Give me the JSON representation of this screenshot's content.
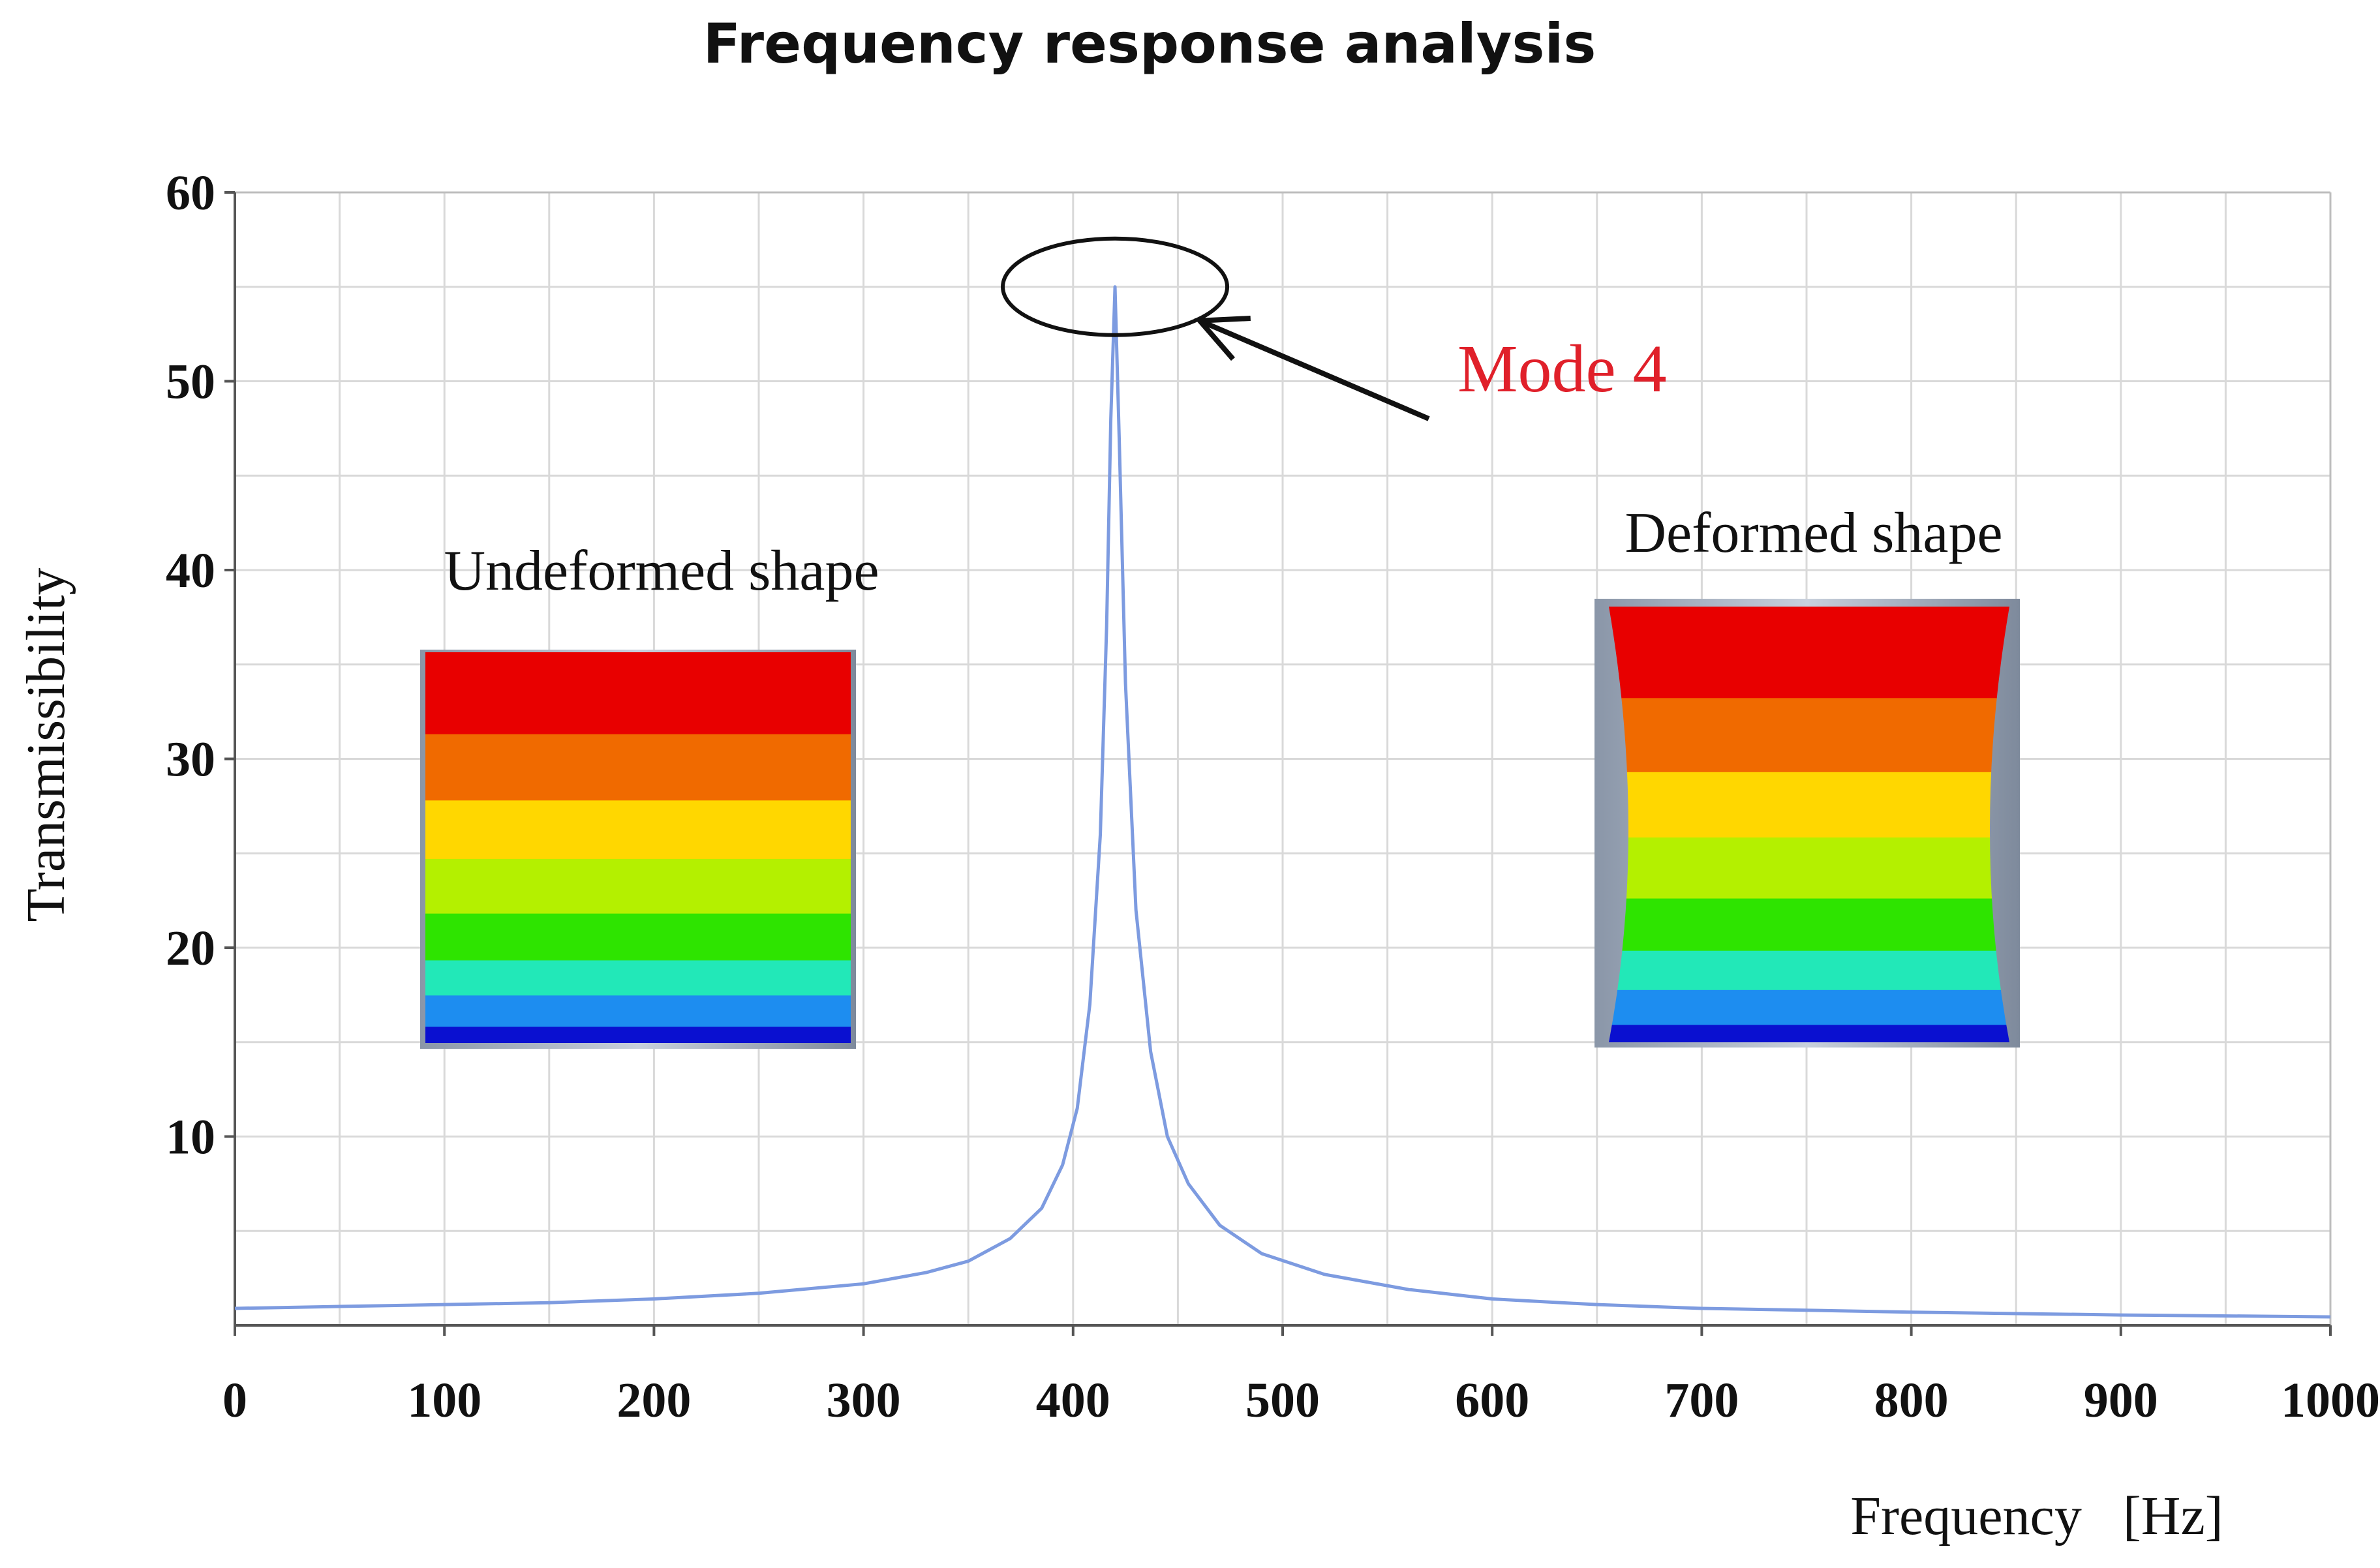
{
  "chart_data": {
    "type": "line",
    "title": "Frequency response analysis",
    "xlabel": "Frequency   [Hz]",
    "ylabel": "Transmissibility",
    "xlim": [
      0,
      1000
    ],
    "ylim": [
      0,
      60
    ],
    "x_ticks": [
      "0",
      "100",
      "200",
      "300",
      "400",
      "500",
      "600",
      "700",
      "800",
      "900",
      "1000"
    ],
    "y_ticks": [
      "10",
      "20",
      "30",
      "40",
      "50",
      "60"
    ],
    "grid": true,
    "series": [
      {
        "name": "Transmissibility",
        "color": "#7d9be0",
        "x": [
          0,
          50,
          100,
          150,
          200,
          250,
          300,
          330,
          350,
          370,
          385,
          395,
          402,
          408,
          413,
          416,
          418,
          420,
          422,
          425,
          430,
          437,
          445,
          455,
          470,
          490,
          520,
          560,
          600,
          650,
          700,
          800,
          900,
          1000
        ],
        "y": [
          0.9,
          1.0,
          1.1,
          1.2,
          1.4,
          1.7,
          2.2,
          2.8,
          3.4,
          4.6,
          6.2,
          8.5,
          11.5,
          17.0,
          26.0,
          37.0,
          48.0,
          55.0,
          47.0,
          34.0,
          22.0,
          14.5,
          10.0,
          7.5,
          5.3,
          3.8,
          2.7,
          1.9,
          1.4,
          1.1,
          0.9,
          0.7,
          0.55,
          0.45
        ]
      }
    ],
    "annotations": {
      "mode_label": "Mode 4",
      "mode_color": "#e0202a",
      "peak_freq": 420,
      "peak_value": 55,
      "undeformed_label": "Undeformed shape",
      "deformed_label": "Deformed shape"
    },
    "contour_colors": [
      "#e80000",
      "#f06a00",
      "#ffd700",
      "#b4f000",
      "#2ee400",
      "#22e8b8",
      "#1d8df0",
      "#0a10d0"
    ]
  }
}
